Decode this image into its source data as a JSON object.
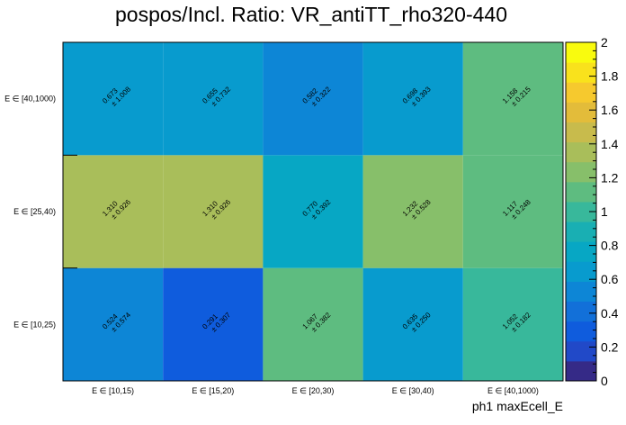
{
  "chart_data": {
    "type": "heatmap",
    "title": "pospos/Incl. Ratio: VR_antiTT_rho320-440",
    "xlabel": "ph1 maxEcell_E",
    "ylabel": "",
    "x_categories": [
      "E ∈ [10,15)",
      "E ∈ [15,20)",
      "E ∈ [20,30)",
      "E ∈ [30,40)",
      "E ∈ [40,1000)"
    ],
    "y_categories": [
      "E ∈ [10,25)",
      "E ∈ [25,40)",
      "E ∈ [40,1000)"
    ],
    "values": [
      [
        0.524,
        0.291,
        1.067,
        0.635,
        1.052
      ],
      [
        1.31,
        1.31,
        0.77,
        1.232,
        1.117
      ],
      [
        0.673,
        0.655,
        0.582,
        0.698,
        1.158
      ]
    ],
    "errors": [
      [
        0.574,
        0.307,
        0.382,
        0.25,
        0.182
      ],
      [
        0.926,
        0.926,
        0.392,
        0.528,
        0.248
      ],
      [
        1.008,
        0.732,
        0.322,
        0.393,
        0.215
      ]
    ],
    "labels": [
      [
        "0.524",
        "0.291",
        "1.067",
        "0.635",
        "1.052"
      ],
      [
        "1.310",
        "1.310",
        "0.770",
        "1.232",
        "1.117"
      ],
      [
        "0.673",
        "0.655",
        "0.582",
        "0.698",
        "1.158"
      ]
    ],
    "error_labels": [
      [
        "± 0.574",
        "± 0.307",
        "± 0.382",
        "± 0.250",
        "± 0.182"
      ],
      [
        "± 0.926",
        "± 0.926",
        "± 0.392",
        "± 0.528",
        "± 0.248"
      ],
      [
        "± 1.008",
        "± 0.732",
        "± 0.322",
        "± 0.393",
        "± 0.215"
      ]
    ],
    "zlim": [
      0,
      2
    ],
    "z_ticks": [
      "0",
      "0.2",
      "0.4",
      "0.6",
      "0.8",
      "1",
      "1.2",
      "1.4",
      "1.6",
      "1.8",
      "2"
    ],
    "colorscale": [
      "#352a87",
      "#2149c8",
      "#0f5cdd",
      "#1270d9",
      "#0d86d6",
      "#089bce",
      "#07a7c4",
      "#19afb3",
      "#38b89b",
      "#5ebc80",
      "#87bf6a",
      "#a9be5a",
      "#c8bb4c",
      "#e3bc3a",
      "#f6c92e",
      "#f9e21c",
      "#f9fb0e"
    ],
    "grid": false,
    "legend": "colorbar-right"
  }
}
